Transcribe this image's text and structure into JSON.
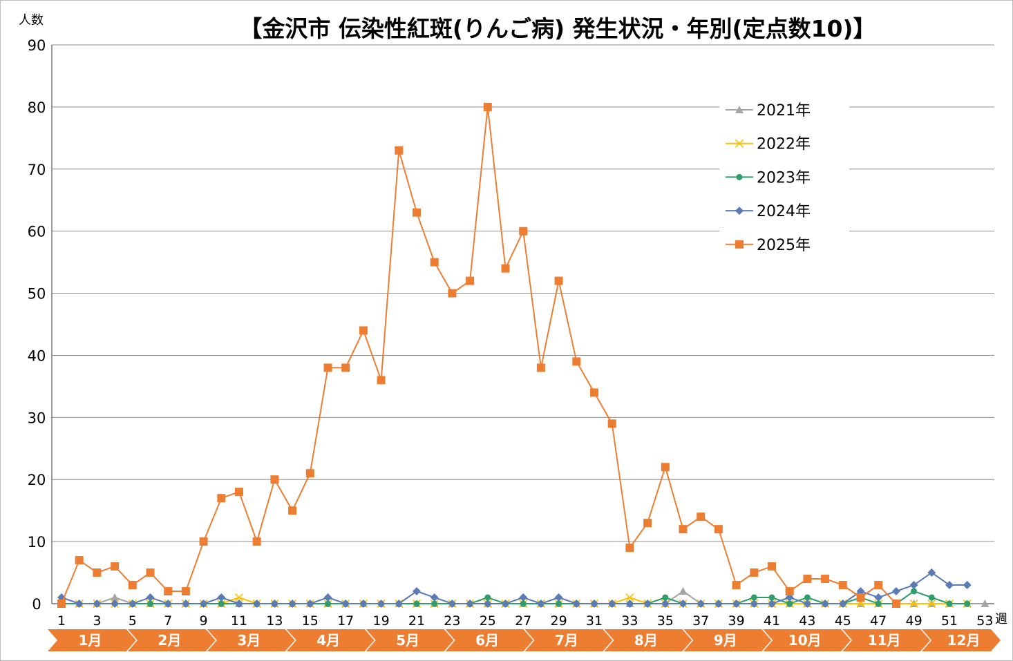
{
  "chart_data": {
    "type": "line",
    "title": "【金沢市 伝染性紅斑(りんご病) 発生状況・年別(定点数10)】",
    "ylabel": "人数",
    "xlabel": "週",
    "ylim": [
      0,
      90
    ],
    "yticks": [
      0,
      10,
      20,
      30,
      40,
      50,
      60,
      70,
      80,
      90
    ],
    "xlim": [
      1,
      53
    ],
    "xticks": [
      1,
      3,
      5,
      7,
      9,
      11,
      13,
      15,
      17,
      19,
      21,
      23,
      25,
      27,
      29,
      31,
      33,
      35,
      37,
      39,
      41,
      43,
      45,
      47,
      49,
      51,
      53
    ],
    "grid": true,
    "legend_position": "upper-right",
    "months": [
      "1月",
      "2月",
      "3月",
      "4月",
      "5月",
      "6月",
      "7月",
      "8月",
      "9月",
      "10月",
      "11月",
      "12月"
    ],
    "series": [
      {
        "name": "2021年",
        "color": "#a5a5a5",
        "marker": "triangle",
        "x": [
          1,
          2,
          3,
          4,
          5,
          6,
          7,
          8,
          9,
          10,
          11,
          12,
          13,
          14,
          15,
          16,
          17,
          18,
          19,
          20,
          21,
          22,
          23,
          24,
          25,
          26,
          27,
          28,
          29,
          30,
          31,
          32,
          33,
          34,
          35,
          36,
          37,
          38,
          39,
          40,
          41,
          42,
          43,
          44,
          45,
          46,
          47,
          48,
          49,
          50,
          51,
          52,
          53
        ],
        "values": [
          0,
          0,
          0,
          1,
          0,
          0,
          0,
          0,
          0,
          0,
          0,
          0,
          0,
          0,
          0,
          0,
          0,
          0,
          0,
          0,
          0,
          0,
          0,
          0,
          0,
          0,
          0,
          0,
          0,
          0,
          0,
          0,
          0,
          0,
          0,
          2,
          0,
          0,
          0,
          0,
          0,
          0,
          0,
          0,
          0,
          0,
          0,
          0,
          0,
          0,
          0,
          0,
          0
        ]
      },
      {
        "name": "2022年",
        "color": "#ffc000",
        "marker": "x",
        "x": [
          1,
          2,
          3,
          4,
          5,
          6,
          7,
          8,
          9,
          10,
          11,
          12,
          13,
          14,
          15,
          16,
          17,
          18,
          19,
          20,
          21,
          22,
          23,
          24,
          25,
          26,
          27,
          28,
          29,
          30,
          31,
          32,
          33,
          34,
          35,
          36,
          37,
          38,
          39,
          40,
          41,
          42,
          43,
          44,
          45,
          46,
          47,
          48,
          49,
          50,
          51,
          52
        ],
        "values": [
          0,
          0,
          0,
          0,
          0,
          0,
          0,
          0,
          0,
          0,
          1,
          0,
          0,
          0,
          0,
          0,
          0,
          0,
          0,
          0,
          0,
          0,
          0,
          0,
          0,
          0,
          0,
          0,
          0,
          0,
          0,
          0,
          1,
          0,
          0,
          0,
          0,
          0,
          0,
          0,
          0,
          0,
          0,
          0,
          0,
          0,
          0,
          0,
          0,
          0,
          0,
          0
        ]
      },
      {
        "name": "2023年",
        "color": "#2e9e6b",
        "marker": "circle",
        "x": [
          1,
          2,
          3,
          4,
          5,
          6,
          7,
          8,
          9,
          10,
          11,
          12,
          13,
          14,
          15,
          16,
          17,
          18,
          19,
          20,
          21,
          22,
          23,
          24,
          25,
          26,
          27,
          28,
          29,
          30,
          31,
          32,
          33,
          34,
          35,
          36,
          37,
          38,
          39,
          40,
          41,
          42,
          43,
          44,
          45,
          46,
          47,
          48,
          49,
          50,
          51,
          52
        ],
        "values": [
          0,
          0,
          0,
          0,
          0,
          0,
          0,
          0,
          0,
          0,
          0,
          0,
          0,
          0,
          0,
          0,
          0,
          0,
          0,
          0,
          0,
          0,
          0,
          0,
          1,
          0,
          0,
          0,
          0,
          0,
          0,
          0,
          0,
          0,
          1,
          0,
          0,
          0,
          0,
          1,
          1,
          0,
          1,
          0,
          0,
          1,
          0,
          0,
          2,
          1,
          0,
          0
        ]
      },
      {
        "name": "2024年",
        "color": "#5b7bb4",
        "marker": "diamond",
        "x": [
          1,
          2,
          3,
          4,
          5,
          6,
          7,
          8,
          9,
          10,
          11,
          12,
          13,
          14,
          15,
          16,
          17,
          18,
          19,
          20,
          21,
          22,
          23,
          24,
          25,
          26,
          27,
          28,
          29,
          30,
          31,
          32,
          33,
          34,
          35,
          36,
          37,
          38,
          39,
          40,
          41,
          42,
          43,
          44,
          45,
          46,
          47,
          48,
          49,
          50,
          51,
          52
        ],
        "values": [
          1,
          0,
          0,
          0,
          0,
          1,
          0,
          0,
          0,
          1,
          0,
          0,
          0,
          0,
          0,
          1,
          0,
          0,
          0,
          0,
          2,
          1,
          0,
          0,
          0,
          0,
          1,
          0,
          1,
          0,
          0,
          0,
          0,
          0,
          0,
          0,
          0,
          0,
          0,
          0,
          0,
          1,
          0,
          0,
          0,
          2,
          1,
          2,
          3,
          5,
          3,
          3
        ]
      },
      {
        "name": "2025年",
        "color": "#ed7d31",
        "marker": "square",
        "x": [
          1,
          2,
          3,
          4,
          5,
          6,
          7,
          8,
          9,
          10,
          11,
          12,
          13,
          14,
          15,
          16,
          17,
          18,
          19,
          20,
          21,
          22,
          23,
          24,
          25,
          26,
          27,
          28,
          29,
          30,
          31,
          32,
          33,
          34,
          35,
          36,
          37,
          38,
          39,
          40,
          41,
          42,
          43,
          44,
          45,
          46,
          47,
          48
        ],
        "values": [
          0,
          7,
          5,
          6,
          3,
          5,
          2,
          2,
          10,
          17,
          18,
          10,
          20,
          15,
          21,
          38,
          38,
          44,
          36,
          73,
          63,
          55,
          50,
          52,
          80,
          54,
          60,
          38,
          52,
          39,
          34,
          29,
          9,
          13,
          22,
          12,
          14,
          12,
          3,
          5,
          6,
          2,
          4,
          4,
          3,
          1,
          3,
          0
        ]
      }
    ]
  }
}
